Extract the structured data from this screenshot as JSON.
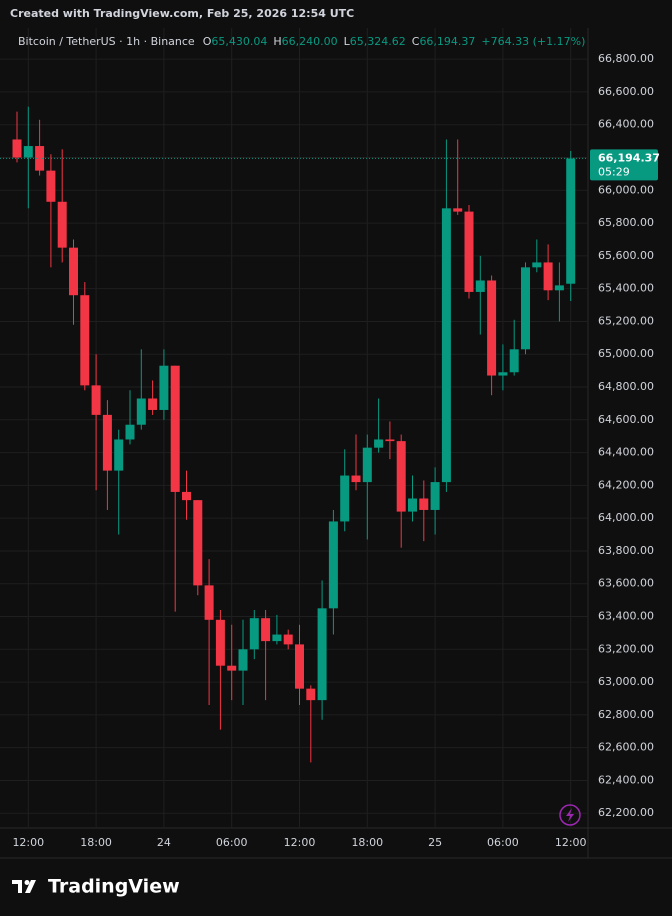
{
  "header": {
    "created": "Created with TradingView.com, Feb 25, 2026 12:54 UTC"
  },
  "footer": {
    "brand": "TradingView"
  },
  "chart_data": {
    "type": "candlestick",
    "legend": {
      "symbol": "Bitcoin / TetherUS · 1h · Binance",
      "items": [
        {
          "key": "O",
          "value": "65,430.04"
        },
        {
          "key": "H",
          "value": "66,240.00"
        },
        {
          "key": "L",
          "value": "65,324.62"
        },
        {
          "key": "C",
          "value": "66,194.37"
        }
      ],
      "change": "+764.33 (+1.17%)"
    },
    "last_price_label": "66,194.37",
    "countdown": "05:29",
    "up_color": "#089981",
    "down_color": "#f23645",
    "grid": true,
    "categories": [
      null,
      "12:00",
      null,
      null,
      null,
      null,
      null,
      "18:00",
      null,
      null,
      null,
      null,
      null,
      "24",
      null,
      null,
      null,
      null,
      null,
      "06:00",
      null,
      null,
      null,
      null,
      null,
      "12:00",
      null,
      null,
      null,
      null,
      null,
      "18:00",
      null,
      null,
      null,
      null,
      null,
      "25",
      null,
      null,
      null,
      null,
      null,
      "06:00",
      null,
      null,
      null,
      null,
      null,
      "12:00"
    ],
    "open": [
      66310,
      66200,
      66270,
      66120,
      65930,
      65650,
      65360,
      64810,
      64630,
      64290,
      64480,
      64570,
      64730,
      64660,
      64930,
      64160,
      64110,
      63590,
      63380,
      63100,
      63070,
      63200,
      63390,
      63250,
      63290,
      63230,
      62960,
      62890,
      63450,
      63980,
      64260,
      64220,
      64430,
      64480,
      64470,
      64040,
      64120,
      64050,
      64220,
      65890,
      65870,
      65380,
      65450,
      64870,
      64890,
      65030,
      65530,
      65560,
      65390,
      65430.04
    ],
    "high": [
      66480,
      66510,
      66430,
      66220,
      66250,
      65700,
      65440,
      65000,
      64720,
      64540,
      64780,
      65030,
      64840,
      65030,
      64930,
      64290,
      64110,
      63750,
      63440,
      63350,
      63380,
      63440,
      63440,
      63410,
      63320,
      63350,
      62980,
      63620,
      64050,
      64420,
      64510,
      64510,
      64730,
      64590,
      64510,
      64260,
      64230,
      64310,
      66310,
      66310,
      65910,
      65600,
      65480,
      65060,
      65210,
      65560,
      65700,
      65670,
      65560,
      66240
    ],
    "low": [
      66170,
      65890,
      66090,
      65530,
      65560,
      65180,
      64780,
      64170,
      64050,
      63900,
      64450,
      64540,
      64630,
      64600,
      63430,
      63990,
      63530,
      62860,
      62710,
      62890,
      62860,
      63140,
      62890,
      63230,
      63200,
      62860,
      62510,
      62770,
      63290,
      63920,
      64170,
      63870,
      64400,
      64360,
      63820,
      63980,
      63860,
      63900,
      64160,
      65850,
      65340,
      65120,
      64750,
      64780,
      64870,
      65000,
      65500,
      65330,
      65200,
      65324.62
    ],
    "close": [
      66200,
      66270,
      66120,
      65930,
      65650,
      65360,
      64810,
      64630,
      64290,
      64480,
      64570,
      64730,
      64660,
      64930,
      64160,
      64110,
      63590,
      63380,
      63100,
      63070,
      63200,
      63390,
      63250,
      63290,
      63230,
      62960,
      62890,
      63450,
      63980,
      64260,
      64220,
      64430,
      64480,
      64470,
      64040,
      64120,
      64050,
      64220,
      65890,
      65870,
      65380,
      65450,
      64870,
      64890,
      65030,
      65530,
      65560,
      65390,
      65420,
      66194.37
    ],
    "ylim": [
      62110,
      66990
    ],
    "yticks": [
      {
        "value": 62200,
        "label": "62,200.00"
      },
      {
        "value": 62400,
        "label": "62,400.00"
      },
      {
        "value": 62600,
        "label": "62,600.00"
      },
      {
        "value": 62800,
        "label": "62,800.00"
      },
      {
        "value": 63000,
        "label": "63,000.00"
      },
      {
        "value": 63200,
        "label": "63,200.00"
      },
      {
        "value": 63400,
        "label": "63,400.00"
      },
      {
        "value": 63600,
        "label": "63,600.00"
      },
      {
        "value": 63800,
        "label": "63,800.00"
      },
      {
        "value": 64000,
        "label": "64,000.00"
      },
      {
        "value": 64200,
        "label": "64,200.00"
      },
      {
        "value": 64400,
        "label": "64,400.00"
      },
      {
        "value": 64600,
        "label": "64,600.00"
      },
      {
        "value": 64800,
        "label": "64,800.00"
      },
      {
        "value": 65000,
        "label": "65,000.00"
      },
      {
        "value": 65200,
        "label": "65,200.00"
      },
      {
        "value": 65400,
        "label": "65,400.00"
      },
      {
        "value": 65600,
        "label": "65,600.00"
      },
      {
        "value": 65800,
        "label": "65,800.00"
      },
      {
        "value": 66000,
        "label": "66,000.00"
      },
      {
        "value": 66200,
        "label": "66,200.00"
      },
      {
        "value": 66400,
        "label": "66,400.00"
      },
      {
        "value": 66600,
        "label": "66,600.00"
      },
      {
        "value": 66800,
        "label": "66,800.00"
      }
    ]
  }
}
